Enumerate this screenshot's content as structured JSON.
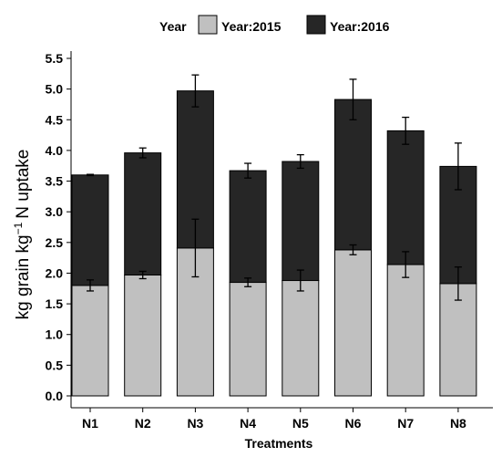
{
  "chart_data": {
    "type": "bar",
    "stacked": true,
    "categories": [
      "N1",
      "N2",
      "N3",
      "N4",
      "N5",
      "N6",
      "N7",
      "N8"
    ],
    "series": [
      {
        "name": "Year:2015",
        "color": "#c0c0c0",
        "values": [
          1.8,
          1.97,
          2.41,
          1.85,
          1.88,
          2.38,
          2.14,
          1.83
        ],
        "error": [
          0.09,
          0.06,
          0.47,
          0.07,
          0.17,
          0.08,
          0.21,
          0.27
        ]
      },
      {
        "name": "Year:2016",
        "color": "#262626",
        "values": [
          1.8,
          1.99,
          2.56,
          1.82,
          1.94,
          2.45,
          2.18,
          1.91
        ],
        "error": [
          0.01,
          0.08,
          0.26,
          0.12,
          0.11,
          0.33,
          0.22,
          0.38
        ]
      }
    ],
    "title": "",
    "xlabel": "Treatments",
    "ylabel_parts": [
      "kg grain kg",
      "−1",
      "N uptake"
    ],
    "ylim": [
      0,
      5.5
    ],
    "yticks": [
      "0.0",
      "0.5",
      "1.0",
      "1.5",
      "2.0",
      "2.5",
      "3.0",
      "3.5",
      "4.0",
      "4.5",
      "5.0",
      "5.5"
    ],
    "legend": {
      "title": "Year",
      "position": "top"
    },
    "grid": false
  }
}
